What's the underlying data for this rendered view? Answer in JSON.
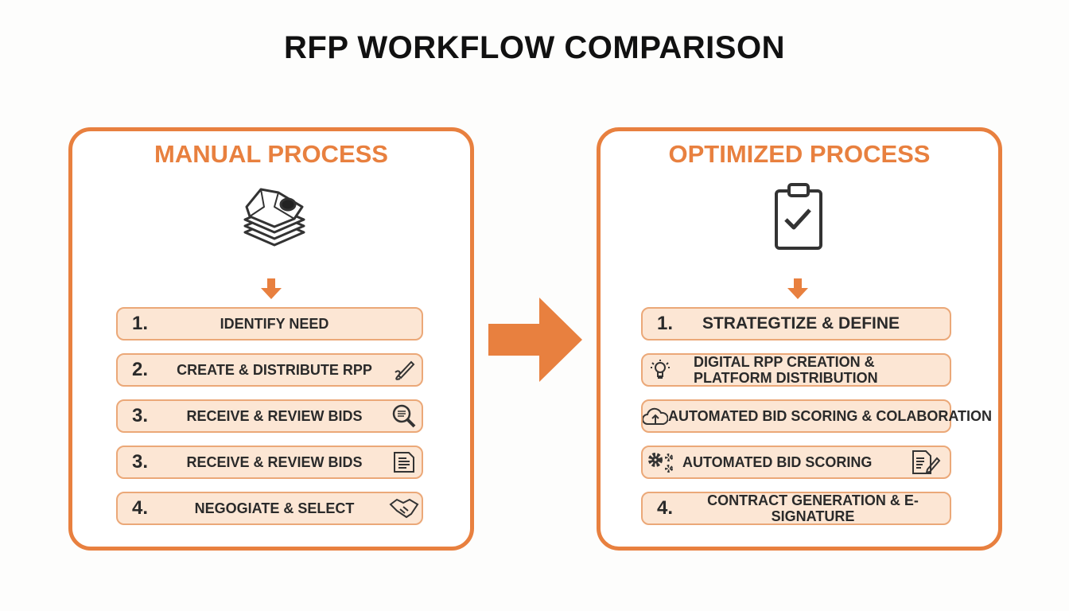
{
  "title": "RFP WORKFLOW COMPARISON",
  "accent": "#E8803F",
  "manual": {
    "heading": "MANUAL PROCESS",
    "icon": "crumpled-paper-stack-icon",
    "steps": [
      {
        "num": "1.",
        "label": "IDENTIFY NEED",
        "icon": ""
      },
      {
        "num": "2.",
        "label": "CREATE & DISTRIBUTE RPP",
        "icon": "signing-pen-icon"
      },
      {
        "num": "3.",
        "label": "RECEIVE & REVIEW BIDS",
        "icon": "magnifier-icon"
      },
      {
        "num": "3.",
        "label": "RECEIVE & REVIEW BIDS",
        "icon": "document-icon"
      },
      {
        "num": "4.",
        "label": "NEGOGIATE & SELECT",
        "icon": "handshake-icon"
      }
    ]
  },
  "optimized": {
    "heading": "OPTIMIZED PROCESS",
    "icon": "clipboard-check-icon",
    "steps": [
      {
        "num": "1.",
        "label": "STRATEGTIZE & DEFINE",
        "icon": ""
      },
      {
        "num": "",
        "label": "DIGITAL RPP CREATION & PLATFORM DISTRIBUTION",
        "icon": "lightbulb-icon"
      },
      {
        "num": "",
        "label": "AUTOMATED BID SCORING & COLABORATION",
        "icon": "cloud-upload-icon"
      },
      {
        "num": "",
        "label": "AUTOMATED BID SCORING",
        "icon": "gears-icon"
      },
      {
        "num": "4.",
        "label": "CONTRACT GENERATION & E-SIGNATURE",
        "icon": ""
      }
    ]
  }
}
